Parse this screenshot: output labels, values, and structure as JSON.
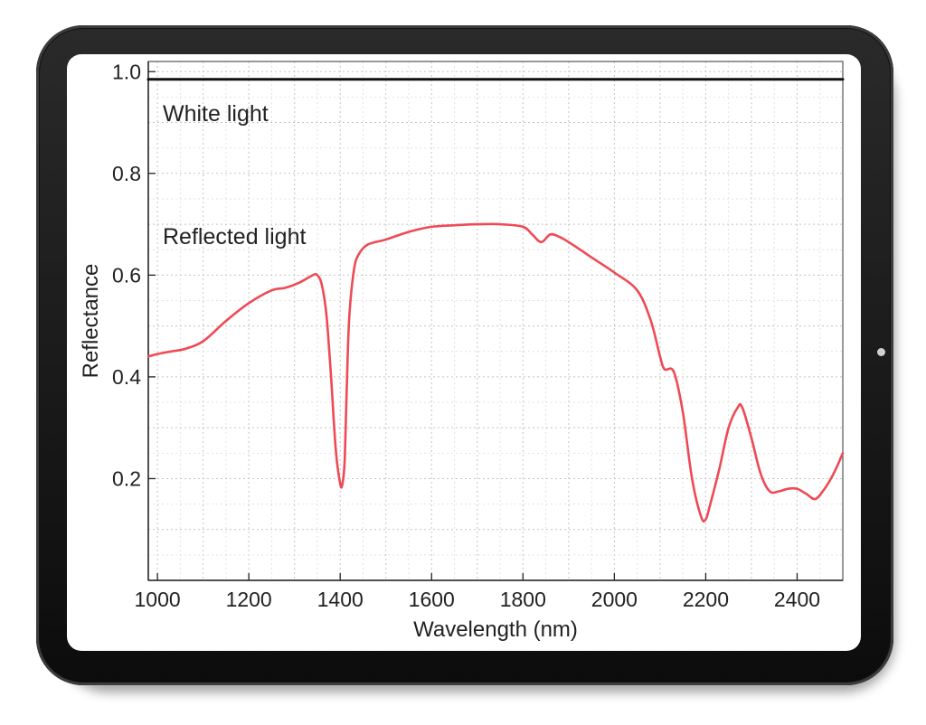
{
  "chart_data": {
    "type": "line",
    "xlabel": "Wavelength (nm)",
    "ylabel": "Reflectance",
    "xlim": [
      980,
      2500
    ],
    "ylim": [
      0.0,
      1.02
    ],
    "xticks": [
      1000,
      1200,
      1400,
      1600,
      1800,
      2000,
      2200,
      2400
    ],
    "yticks": [
      0.2,
      0.4,
      0.6,
      0.8,
      1.0
    ],
    "xtick_labels": [
      "1000",
      "1200",
      "1400",
      "1600",
      "1800",
      "2000",
      "2200",
      "2400"
    ],
    "ytick_labels": [
      "0.2",
      "0.4",
      "0.6",
      "0.8",
      "1.0"
    ],
    "grid": true,
    "annotations": [
      {
        "text": "White light",
        "x": 1015,
        "y": 0.915
      },
      {
        "text": "Reflected light",
        "x": 1015,
        "y": 0.675
      }
    ],
    "series": [
      {
        "color": "#ee4a55",
        "x": [
          980,
          1000,
          1030,
          1060,
          1100,
          1150,
          1200,
          1250,
          1280,
          1310,
          1340,
          1350,
          1360,
          1370,
          1380,
          1390,
          1400,
          1405,
          1410,
          1415,
          1420,
          1430,
          1440,
          1460,
          1500,
          1550,
          1600,
          1650,
          1700,
          1750,
          1800,
          1820,
          1840,
          1860,
          1880,
          1900,
          1950,
          2000,
          2050,
          2080,
          2100,
          2110,
          2130,
          2150,
          2170,
          2190,
          2200,
          2210,
          2230,
          2250,
          2270,
          2280,
          2300,
          2320,
          2340,
          2360,
          2380,
          2400,
          2420,
          2440,
          2460,
          2480,
          2500
        ],
        "y": [
          0.44,
          0.445,
          0.45,
          0.455,
          0.47,
          0.51,
          0.545,
          0.57,
          0.575,
          0.585,
          0.6,
          0.6,
          0.58,
          0.52,
          0.4,
          0.26,
          0.19,
          0.19,
          0.24,
          0.4,
          0.52,
          0.61,
          0.64,
          0.66,
          0.67,
          0.685,
          0.695,
          0.698,
          0.7,
          0.7,
          0.695,
          0.68,
          0.665,
          0.68,
          0.675,
          0.665,
          0.635,
          0.605,
          0.57,
          0.51,
          0.44,
          0.415,
          0.41,
          0.33,
          0.2,
          0.125,
          0.12,
          0.15,
          0.22,
          0.3,
          0.34,
          0.34,
          0.28,
          0.21,
          0.175,
          0.175,
          0.18,
          0.18,
          0.17,
          0.16,
          0.18,
          0.21,
          0.25
        ]
      },
      {
        "color": "#111111",
        "x": [
          980,
          2500
        ],
        "y": [
          0.985,
          0.985
        ]
      }
    ]
  }
}
